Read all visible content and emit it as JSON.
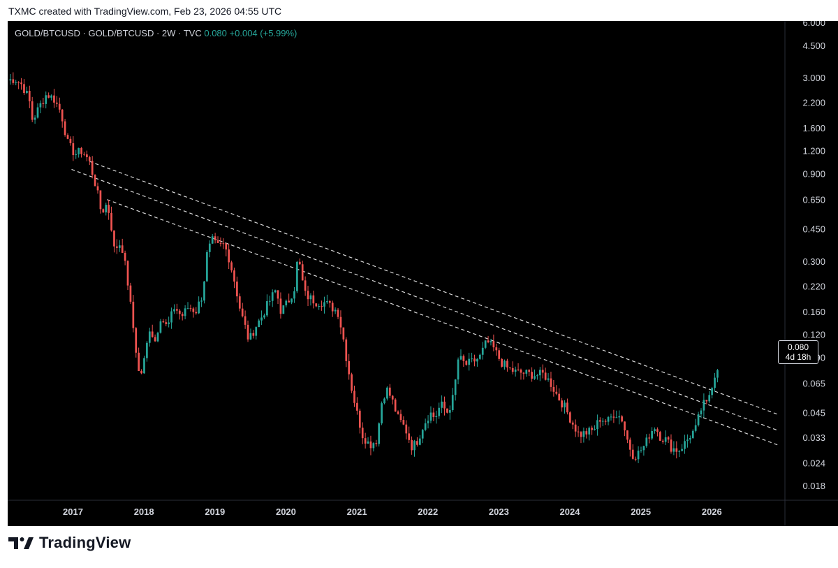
{
  "caption": "TXMC created with TradingView.com, Feb 23, 2026 04:55 UTC",
  "legend": {
    "symbol": "GOLD/BTCUSD · GOLD/BTCUSD · 2W · TVC",
    "last": "0.080",
    "change": "+0.004 (+5.99%)"
  },
  "price_tag": {
    "value": "0.080",
    "countdown": "4d 18h"
  },
  "brand": "TradingView",
  "colors": {
    "up": "#26a69a",
    "down": "#ef5350",
    "background": "#000000",
    "axis_text": "#d1d4dc",
    "trendline": "#ffffff"
  },
  "chart_data": {
    "type": "candlestick",
    "title": "GOLD/BTCUSD",
    "scale": "log",
    "ylim": [
      0.015,
      6.0
    ],
    "xlim": [
      2016.1,
      2027.05
    ],
    "y_ticks": [
      6.0,
      4.5,
      3.0,
      2.2,
      1.6,
      1.2,
      0.9,
      0.65,
      0.45,
      0.3,
      0.22,
      0.16,
      0.12,
      0.09,
      0.065,
      0.045,
      0.033,
      0.024,
      0.018
    ],
    "y_tick_labels": [
      "6.000",
      "4.500",
      "3.000",
      "2.200",
      "1.600",
      "1.200",
      "0.900",
      "0.650",
      "0.450",
      "0.300",
      "0.220",
      "0.160",
      "0.120",
      "0.090",
      "0.065",
      "0.045",
      "0.033",
      "0.024",
      "0.018"
    ],
    "x_ticks": [
      2017,
      2018,
      2019,
      2020,
      2021,
      2022,
      2023,
      2024,
      2025,
      2026
    ],
    "x_tick_labels": [
      "2017",
      "2018",
      "2019",
      "2020",
      "2021",
      "2022",
      "2023",
      "2024",
      "2025",
      "2026"
    ],
    "closes": [
      [
        2016.1,
        2.9
      ],
      [
        2016.2,
        2.95
      ],
      [
        2016.3,
        2.75
      ],
      [
        2016.4,
        2.3
      ],
      [
        2016.45,
        1.75
      ],
      [
        2016.55,
        2.1
      ],
      [
        2016.65,
        2.45
      ],
      [
        2016.75,
        2.3
      ],
      [
        2016.85,
        1.95
      ],
      [
        2016.95,
        1.3
      ],
      [
        2017.05,
        1.15
      ],
      [
        2017.15,
        1.2
      ],
      [
        2017.25,
        1.05
      ],
      [
        2017.35,
        0.75
      ],
      [
        2017.42,
        0.55
      ],
      [
        2017.5,
        0.62
      ],
      [
        2017.55,
        0.5
      ],
      [
        2017.6,
        0.35
      ],
      [
        2017.7,
        0.38
      ],
      [
        2017.78,
        0.25
      ],
      [
        2017.85,
        0.15
      ],
      [
        2017.92,
        0.09
      ],
      [
        2017.96,
        0.068
      ],
      [
        2018.02,
        0.085
      ],
      [
        2018.1,
        0.13
      ],
      [
        2018.18,
        0.11
      ],
      [
        2018.25,
        0.15
      ],
      [
        2018.35,
        0.13
      ],
      [
        2018.45,
        0.17
      ],
      [
        2018.55,
        0.15
      ],
      [
        2018.65,
        0.17
      ],
      [
        2018.75,
        0.16
      ],
      [
        2018.85,
        0.2
      ],
      [
        2018.9,
        0.32
      ],
      [
        2018.98,
        0.39
      ],
      [
        2019.05,
        0.36
      ],
      [
        2019.15,
        0.37
      ],
      [
        2019.22,
        0.31
      ],
      [
        2019.3,
        0.23
      ],
      [
        2019.38,
        0.16
      ],
      [
        2019.45,
        0.13
      ],
      [
        2019.5,
        0.11
      ],
      [
        2019.58,
        0.13
      ],
      [
        2019.68,
        0.15
      ],
      [
        2019.78,
        0.18
      ],
      [
        2019.88,
        0.21
      ],
      [
        2019.95,
        0.16
      ],
      [
        2020.05,
        0.18
      ],
      [
        2020.15,
        0.22
      ],
      [
        2020.18,
        0.3
      ],
      [
        2020.22,
        0.28
      ],
      [
        2020.28,
        0.2
      ],
      [
        2020.35,
        0.19
      ],
      [
        2020.45,
        0.18
      ],
      [
        2020.55,
        0.18
      ],
      [
        2020.65,
        0.17
      ],
      [
        2020.75,
        0.16
      ],
      [
        2020.82,
        0.12
      ],
      [
        2020.88,
        0.085
      ],
      [
        2020.95,
        0.06
      ],
      [
        2021.02,
        0.045
      ],
      [
        2021.1,
        0.034
      ],
      [
        2021.2,
        0.03
      ],
      [
        2021.3,
        0.032
      ],
      [
        2021.38,
        0.055
      ],
      [
        2021.45,
        0.06
      ],
      [
        2021.52,
        0.052
      ],
      [
        2021.6,
        0.042
      ],
      [
        2021.7,
        0.037
      ],
      [
        2021.8,
        0.029
      ],
      [
        2021.88,
        0.032
      ],
      [
        2021.95,
        0.038
      ],
      [
        2022.05,
        0.045
      ],
      [
        2022.12,
        0.042
      ],
      [
        2022.2,
        0.05
      ],
      [
        2022.3,
        0.045
      ],
      [
        2022.38,
        0.055
      ],
      [
        2022.45,
        0.09
      ],
      [
        2022.55,
        0.082
      ],
      [
        2022.65,
        0.085
      ],
      [
        2022.75,
        0.09
      ],
      [
        2022.85,
        0.11
      ],
      [
        2022.95,
        0.1
      ],
      [
        2023.05,
        0.085
      ],
      [
        2023.15,
        0.078
      ],
      [
        2023.25,
        0.075
      ],
      [
        2023.35,
        0.074
      ],
      [
        2023.45,
        0.073
      ],
      [
        2023.55,
        0.072
      ],
      [
        2023.65,
        0.073
      ],
      [
        2023.75,
        0.065
      ],
      [
        2023.85,
        0.055
      ],
      [
        2023.95,
        0.048
      ],
      [
        2024.05,
        0.04
      ],
      [
        2024.15,
        0.034
      ],
      [
        2024.25,
        0.035
      ],
      [
        2024.35,
        0.036
      ],
      [
        2024.45,
        0.042
      ],
      [
        2024.55,
        0.04
      ],
      [
        2024.65,
        0.045
      ],
      [
        2024.75,
        0.042
      ],
      [
        2024.85,
        0.03
      ],
      [
        2024.92,
        0.026
      ],
      [
        2024.98,
        0.027
      ],
      [
        2025.08,
        0.03
      ],
      [
        2025.15,
        0.035
      ],
      [
        2025.22,
        0.038
      ],
      [
        2025.3,
        0.033
      ],
      [
        2025.38,
        0.032
      ],
      [
        2025.45,
        0.029
      ],
      [
        2025.55,
        0.028
      ],
      [
        2025.65,
        0.031
      ],
      [
        2025.72,
        0.034
      ],
      [
        2025.8,
        0.037
      ],
      [
        2025.85,
        0.045
      ],
      [
        2025.9,
        0.05
      ],
      [
        2025.95,
        0.05
      ],
      [
        2026.0,
        0.06
      ],
      [
        2026.05,
        0.07
      ],
      [
        2026.1,
        0.08
      ]
    ],
    "trendlines": [
      {
        "style": "dashed",
        "points": [
          [
            2017.25,
            1.05
          ],
          [
            2026.95,
            0.044
          ]
        ]
      },
      {
        "style": "dashed",
        "points": [
          [
            2017.0,
            0.95
          ],
          [
            2026.95,
            0.036
          ]
        ]
      },
      {
        "style": "dashed",
        "points": [
          [
            2017.5,
            0.65
          ],
          [
            2026.95,
            0.03
          ]
        ]
      }
    ]
  }
}
